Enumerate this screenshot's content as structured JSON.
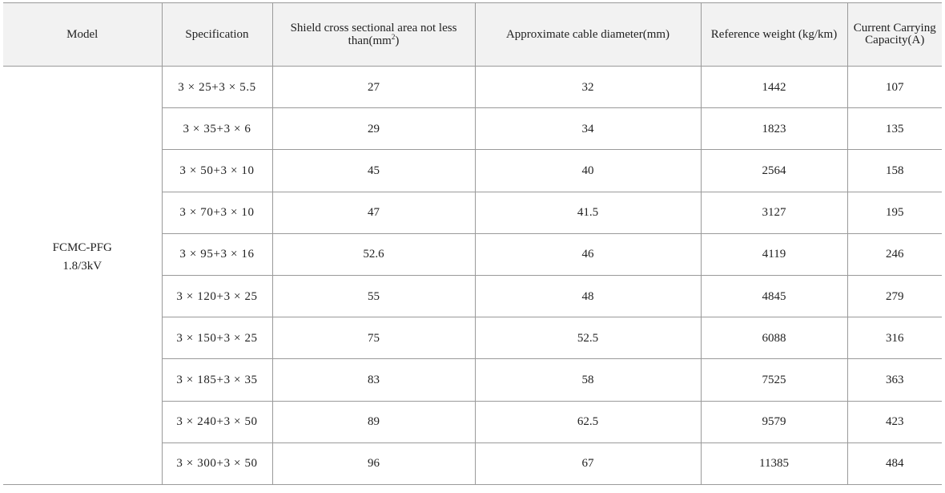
{
  "table": {
    "headers": {
      "model": "Model",
      "specification": "Specification",
      "shield_area_prefix": "Shield cross sectional area not less than(mm",
      "shield_area_sup": "2",
      "shield_area_suffix": ")",
      "diameter": "Approximate cable diameter(mm)",
      "weight": "Reference weight (kg/km)",
      "current": "Current Carrying Capacity(A)"
    },
    "model": {
      "line1": "FCMC-PFG",
      "line2": "1.8/3kV"
    },
    "rows": [
      {
        "spec": "3 × 25+3 × 5.5",
        "shield": "27",
        "diameter": "32",
        "weight": "1442",
        "current": "107"
      },
      {
        "spec": "3 × 35+3 × 6",
        "shield": "29",
        "diameter": "34",
        "weight": "1823",
        "current": "135"
      },
      {
        "spec": "3 × 50+3 × 10",
        "shield": "45",
        "diameter": "40",
        "weight": "2564",
        "current": "158"
      },
      {
        "spec": "3 × 70+3 × 10",
        "shield": "47",
        "diameter": "41.5",
        "weight": "3127",
        "current": "195"
      },
      {
        "spec": "3 × 95+3 × 16",
        "shield": "52.6",
        "diameter": "46",
        "weight": "4119",
        "current": "246"
      },
      {
        "spec": "3 × 120+3 × 25",
        "shield": "55",
        "diameter": "48",
        "weight": "4845",
        "current": "279"
      },
      {
        "spec": "3 × 150+3 × 25",
        "shield": "75",
        "diameter": "52.5",
        "weight": "6088",
        "current": "316"
      },
      {
        "spec": "3 × 185+3 × 35",
        "shield": "83",
        "diameter": "58",
        "weight": "7525",
        "current": "363"
      },
      {
        "spec": "3 × 240+3 × 50",
        "shield": "89",
        "diameter": "62.5",
        "weight": "9579",
        "current": "423"
      },
      {
        "spec": "3 × 300+3 × 50",
        "shield": "96",
        "diameter": "67",
        "weight": "11385",
        "current": "484"
      }
    ]
  }
}
